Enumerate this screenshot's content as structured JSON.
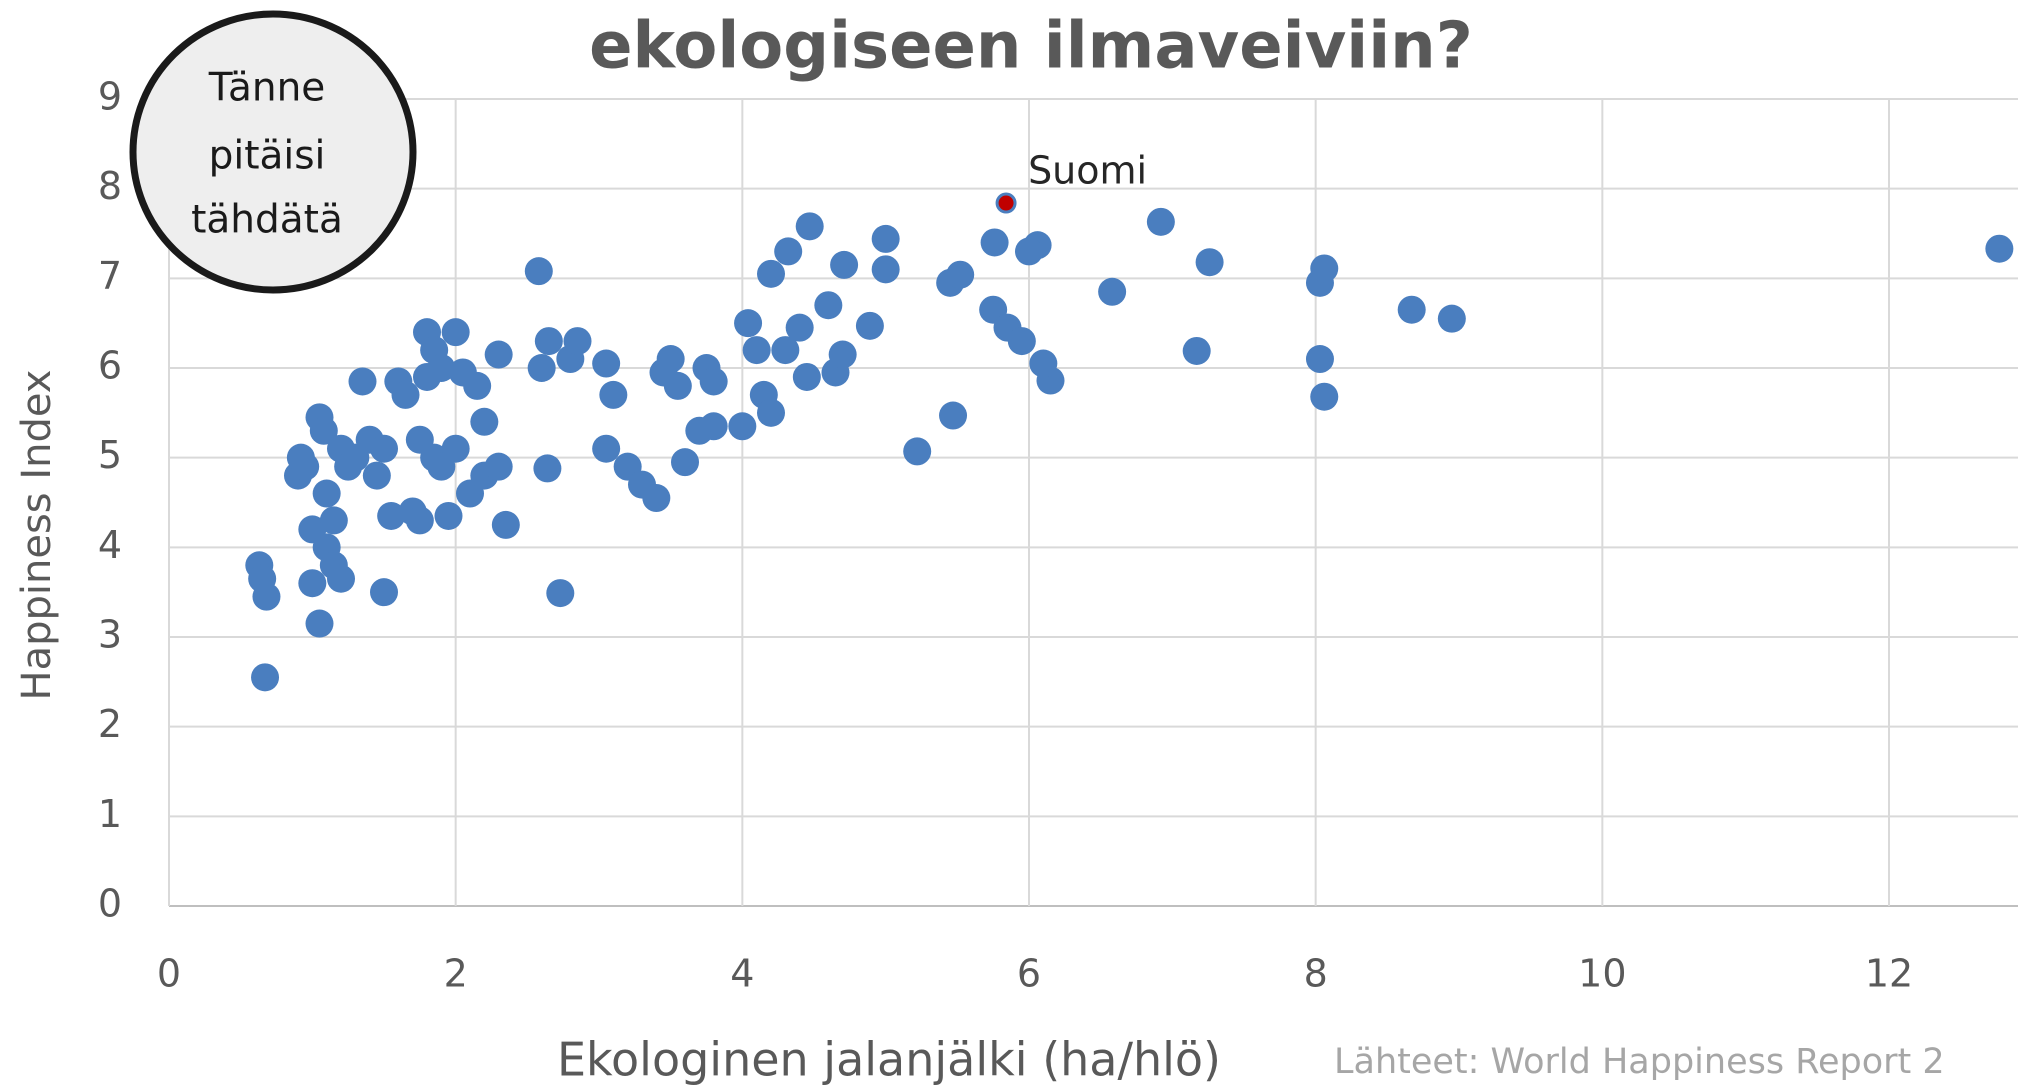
{
  "chart_data": {
    "type": "scatter",
    "title": "ekologiseen ilmaveiviin?",
    "x_label": "Ekologinen jalanjälki (ha/hlö)",
    "y_label": "Happiness Index",
    "source": "Lähteet: World Happiness Report 2",
    "annotation": [
      "Tänne",
      "pitäisi",
      "tähdätä"
    ],
    "xlim": [
      0,
      12.9
    ],
    "xticks": [
      0,
      2,
      4,
      6,
      8,
      10,
      12
    ],
    "ylim": [
      0,
      9
    ],
    "yticks": [
      0,
      1,
      2,
      3,
      4,
      5,
      6,
      7,
      8,
      9
    ],
    "grid": true,
    "series": [
      {
        "color": "#4a7ebf",
        "x": [
          0.63,
          0.65,
          0.68,
          0.67,
          0.9,
          0.92,
          0.95,
          1.0,
          1.0,
          1.05,
          1.08,
          1.05,
          1.1,
          1.1,
          1.15,
          1.15,
          1.2,
          1.2,
          1.25,
          1.3,
          1.35,
          1.4,
          1.45,
          1.5,
          1.5,
          1.55,
          1.6,
          1.65,
          1.7,
          1.75,
          1.75,
          1.8,
          1.8,
          1.85,
          1.85,
          1.9,
          1.9,
          1.95,
          2.0,
          2.0,
          2.05,
          2.1,
          2.15,
          2.2,
          2.2,
          2.3,
          2.3,
          2.35,
          2.58,
          2.6,
          2.65,
          2.64,
          2.73,
          2.8,
          2.85,
          3.05,
          3.05,
          3.1,
          3.2,
          3.3,
          3.4,
          3.45,
          3.5,
          3.55,
          3.6,
          3.7,
          3.75,
          3.8,
          3.8,
          4.0,
          4.04,
          4.1,
          4.15,
          4.2,
          4.2,
          4.32,
          4.3,
          4.4,
          4.45,
          4.47,
          4.6,
          4.65,
          4.7,
          4.71,
          4.89,
          5.0,
          5.0,
          5.22,
          5.47,
          5.45,
          5.52,
          5.76,
          5.75,
          5.85,
          5.95,
          6.06,
          6.0,
          6.15,
          6.1,
          6.58,
          6.92,
          7.26,
          7.17,
          8.03,
          8.06,
          8.03,
          8.06,
          8.67,
          8.95,
          12.77
        ],
        "values": [
          3.8,
          3.65,
          3.45,
          2.55,
          4.8,
          5.0,
          4.9,
          3.6,
          4.2,
          5.45,
          5.3,
          3.15,
          4.6,
          4.0,
          4.3,
          3.8,
          3.65,
          5.1,
          4.9,
          5.0,
          5.85,
          5.2,
          4.8,
          5.1,
          3.5,
          4.35,
          5.85,
          5.7,
          4.4,
          5.2,
          4.3,
          6.4,
          5.9,
          6.2,
          5.0,
          4.9,
          6.0,
          4.35,
          6.4,
          5.1,
          5.95,
          4.6,
          5.8,
          5.4,
          4.8,
          6.15,
          4.9,
          4.25,
          7.08,
          6.0,
          6.3,
          4.88,
          3.49,
          6.1,
          6.3,
          6.05,
          5.1,
          5.7,
          4.9,
          4.7,
          4.55,
          5.95,
          6.1,
          5.8,
          4.95,
          5.3,
          6.0,
          5.35,
          5.85,
          5.35,
          6.5,
          6.2,
          5.7,
          5.5,
          7.05,
          7.3,
          6.2,
          6.45,
          5.9,
          7.58,
          6.7,
          5.95,
          6.15,
          7.15,
          6.47,
          7.44,
          7.1,
          5.07,
          5.47,
          6.95,
          7.04,
          7.4,
          6.65,
          6.45,
          6.3,
          7.37,
          7.3,
          5.86,
          6.05,
          6.85,
          7.63,
          7.18,
          6.19,
          6.95,
          7.11,
          6.1,
          5.68,
          6.65,
          6.55,
          7.33
        ]
      },
      {
        "name": "Suomi",
        "color": "#c00000",
        "x": [
          5.84
        ],
        "values": [
          7.84
        ]
      }
    ]
  }
}
